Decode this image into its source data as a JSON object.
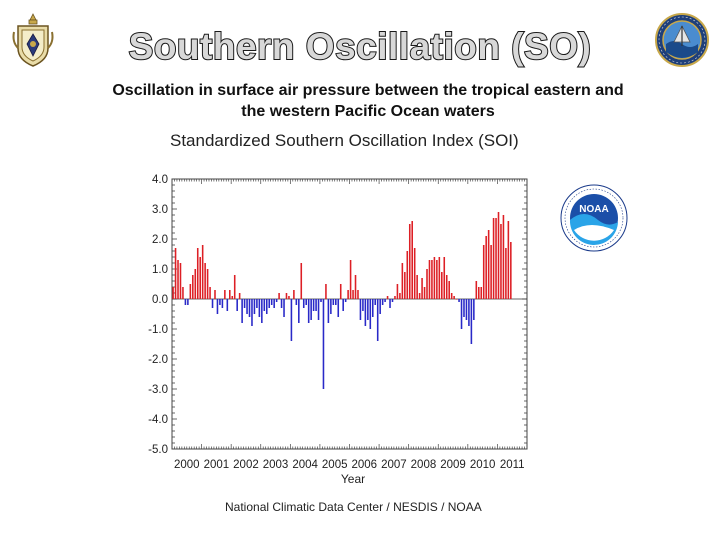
{
  "slide": {
    "title": "Southern Oscillation (SO)",
    "subtitle": "Oscillation in surface air pressure between the tropical eastern and the western Pacific Ocean waters"
  },
  "logos": {
    "left": "naval-academy-crest-icon",
    "right": "oceanography-seal-icon",
    "chart": "noaa-logo-icon"
  },
  "colors": {
    "positive": "#dd1f25",
    "negative": "#2929c8"
  },
  "chart_data": {
    "type": "bar",
    "title": "Standardized Southern Oscillation Index (SOI)",
    "xlabel": "Year",
    "ylabel": "",
    "credit": "National Climatic Data Center / NESDIS / NOAA",
    "ylim": [
      -5.0,
      4.0
    ],
    "yticks": [
      "4.0",
      "3.0",
      "2.0",
      "1.0",
      "0.0",
      "-1.0",
      "-2.0",
      "-3.0",
      "-4.0",
      "-5.0"
    ],
    "xticks": [
      "2000",
      "2001",
      "2002",
      "2003",
      "2004",
      "2005",
      "2006",
      "2007",
      "2008",
      "2009",
      "2010",
      "2011"
    ],
    "start": "2000-01",
    "values": [
      0.4,
      1.7,
      1.3,
      1.2,
      0.4,
      -0.2,
      -0.2,
      0.5,
      0.8,
      1.0,
      1.7,
      1.4,
      1.8,
      1.2,
      1.0,
      0.4,
      -0.3,
      0.3,
      -0.5,
      -0.2,
      -0.3,
      0.3,
      -0.4,
      0.3,
      0.1,
      0.8,
      -0.4,
      0.2,
      -0.8,
      -0.3,
      -0.5,
      -0.6,
      -0.9,
      -0.5,
      -0.3,
      -0.6,
      -0.8,
      -0.4,
      -0.5,
      -0.3,
      -0.2,
      -0.3,
      -0.1,
      0.2,
      -0.3,
      -0.6,
      0.2,
      0.1,
      -1.4,
      0.3,
      -0.2,
      -0.8,
      1.2,
      -0.3,
      -0.2,
      -0.8,
      -0.7,
      -0.4,
      -0.4,
      -0.7,
      -0.1,
      -3.0,
      0.5,
      -0.8,
      -0.5,
      -0.2,
      -0.2,
      -0.6,
      0.5,
      -0.4,
      -0.1,
      0.3,
      1.3,
      0.3,
      0.8,
      0.3,
      -0.7,
      -0.4,
      -0.9,
      -0.7,
      -1.0,
      -0.6,
      -0.2,
      -1.4,
      -0.5,
      -0.2,
      -0.1,
      0.1,
      -0.3,
      -0.1,
      0.1,
      0.5,
      0.2,
      1.2,
      0.9,
      1.6,
      2.5,
      2.6,
      1.7,
      0.8,
      0.2,
      0.7,
      0.4,
      1.0,
      1.3,
      1.3,
      1.4,
      1.3,
      1.4,
      0.9,
      1.4,
      0.8,
      0.6,
      0.2,
      0.1,
      0.0,
      -0.1,
      -1.0,
      -0.6,
      -0.7,
      -0.9,
      -1.5,
      -0.7,
      0.6,
      0.4,
      0.4,
      1.8,
      2.1,
      2.3,
      1.8,
      2.7,
      2.7,
      2.9,
      2.5,
      2.8,
      1.7,
      2.6,
      1.9
    ],
    "grid": false,
    "legend": "none"
  }
}
